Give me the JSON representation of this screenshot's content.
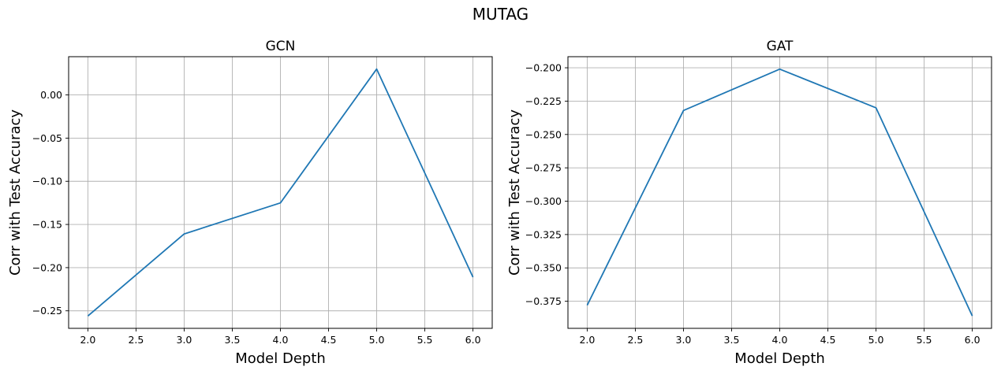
{
  "figure_title": "MUTAG",
  "chart_data": [
    {
      "type": "line",
      "title": "GCN",
      "xlabel": "Model Depth",
      "ylabel": "Corr with Test Accuracy",
      "x": [
        2.0,
        3.0,
        4.0,
        5.0,
        6.0
      ],
      "series": [
        {
          "values": [
            -0.256,
            -0.161,
            -0.125,
            0.03,
            -0.211
          ],
          "color": "#1f77b4"
        }
      ],
      "xticks": [
        "2.0",
        "2.5",
        "3.0",
        "3.5",
        "4.0",
        "4.5",
        "5.0",
        "5.5",
        "6.0"
      ],
      "yticks": [
        "0.00",
        "−0.05",
        "−0.10",
        "−0.15",
        "−0.20",
        "−0.25"
      ],
      "xlim": [
        1.8,
        6.2
      ],
      "ylim": [
        -0.2703,
        0.0443
      ],
      "grid": true
    },
    {
      "type": "line",
      "title": "GAT",
      "xlabel": "Model Depth",
      "ylabel": "Corr with Test Accuracy",
      "x": [
        2.0,
        3.0,
        4.0,
        5.0,
        6.0
      ],
      "series": [
        {
          "values": [
            -0.378,
            -0.232,
            -0.201,
            -0.23,
            -0.386
          ],
          "color": "#1f77b4"
        }
      ],
      "xticks": [
        "2.0",
        "2.5",
        "3.0",
        "3.5",
        "4.0",
        "4.5",
        "5.0",
        "5.5",
        "6.0"
      ],
      "yticks": [
        "−0.200",
        "−0.225",
        "−0.250",
        "−0.275",
        "−0.300",
        "−0.325",
        "−0.350",
        "−0.375"
      ],
      "xlim": [
        1.8,
        6.2
      ],
      "ylim": [
        -0.3953,
        -0.1917
      ],
      "grid": true
    }
  ]
}
